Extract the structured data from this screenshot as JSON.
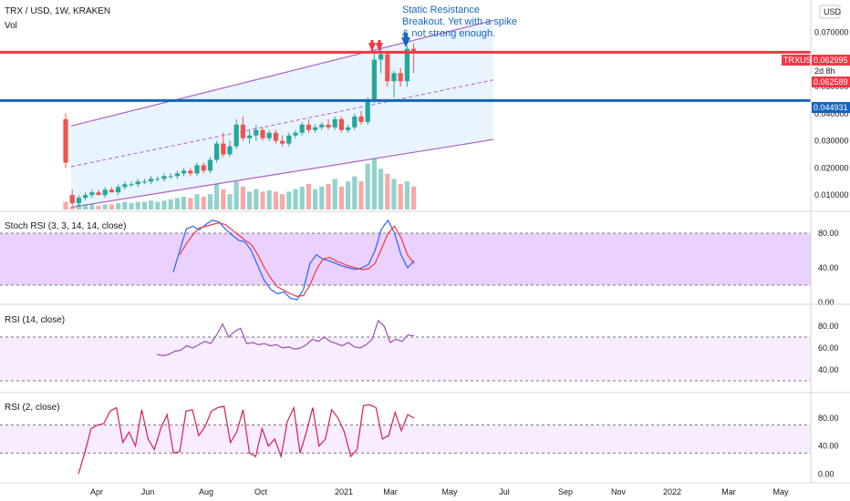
{
  "header": {
    "title": "TRX / USD, 1W, KRAKEN",
    "volume_label": "Vol",
    "currency": "USD"
  },
  "annotation": {
    "line1": "Static Resistance",
    "line2": "Breakout. Yet with a spike",
    "line3": "& not strong enough."
  },
  "price_tags": {
    "symbol": "TRXUSD",
    "last": "0.062995",
    "countdown": "2d 8h",
    "low": "0.062589",
    "support": "0.044931"
  },
  "colors": {
    "up": "#26a69a",
    "down": "#ef5350",
    "resistance": "#f23645",
    "support": "#1565c0",
    "channel": "#b05fc7",
    "stoch_k": "#2962ff",
    "stoch_d": "#f23645",
    "rsi": "#9c4fb0",
    "rsi2": "#d81b60"
  },
  "chart_data": [
    {
      "type": "candlestick",
      "ylim": [
        0.004,
        0.082
      ],
      "yticks": [
        "0.070000",
        "0.060000",
        "0.050000",
        "0.040000",
        "0.030000",
        "0.020000",
        "0.010000"
      ],
      "ytick_values": [
        0.07,
        0.06,
        0.05,
        0.04,
        0.03,
        0.02,
        0.01
      ],
      "xticks": [
        "Apr",
        "Jun",
        "Aug",
        "Oct",
        "2021",
        "Mar",
        "May",
        "Jul",
        "Sep",
        "Nov",
        "2022",
        "Mar",
        "May"
      ],
      "resistance": 0.0627,
      "support": 0.0449,
      "candles": [
        [
          0.038,
          0.04,
          0.02,
          0.022
        ],
        [
          0.01,
          0.012,
          0.006,
          0.007
        ],
        [
          0.007,
          0.01,
          0.006,
          0.009
        ],
        [
          0.009,
          0.011,
          0.008,
          0.01
        ],
        [
          0.01,
          0.012,
          0.009,
          0.011
        ],
        [
          0.011,
          0.012,
          0.01,
          0.01
        ],
        [
          0.01,
          0.013,
          0.009,
          0.012
        ],
        [
          0.012,
          0.013,
          0.011,
          0.011
        ],
        [
          0.011,
          0.014,
          0.01,
          0.013
        ],
        [
          0.013,
          0.015,
          0.012,
          0.014
        ],
        [
          0.014,
          0.015,
          0.013,
          0.014
        ],
        [
          0.014,
          0.016,
          0.013,
          0.015
        ],
        [
          0.015,
          0.016,
          0.014,
          0.015
        ],
        [
          0.015,
          0.017,
          0.014,
          0.016
        ],
        [
          0.016,
          0.017,
          0.015,
          0.016
        ],
        [
          0.016,
          0.018,
          0.015,
          0.017
        ],
        [
          0.017,
          0.018,
          0.016,
          0.017
        ],
        [
          0.017,
          0.019,
          0.016,
          0.018
        ],
        [
          0.018,
          0.02,
          0.017,
          0.019
        ],
        [
          0.019,
          0.02,
          0.017,
          0.018
        ],
        [
          0.018,
          0.022,
          0.017,
          0.021
        ],
        [
          0.021,
          0.022,
          0.018,
          0.019
        ],
        [
          0.019,
          0.024,
          0.018,
          0.023
        ],
        [
          0.023,
          0.03,
          0.022,
          0.029
        ],
        [
          0.029,
          0.033,
          0.024,
          0.025
        ],
        [
          0.025,
          0.03,
          0.024,
          0.028
        ],
        [
          0.028,
          0.038,
          0.027,
          0.036
        ],
        [
          0.036,
          0.039,
          0.03,
          0.031
        ],
        [
          0.031,
          0.034,
          0.029,
          0.032
        ],
        [
          0.032,
          0.036,
          0.03,
          0.034
        ],
        [
          0.034,
          0.035,
          0.03,
          0.031
        ],
        [
          0.031,
          0.034,
          0.03,
          0.033
        ],
        [
          0.033,
          0.034,
          0.029,
          0.03
        ],
        [
          0.03,
          0.032,
          0.028,
          0.029
        ],
        [
          0.029,
          0.033,
          0.028,
          0.032
        ],
        [
          0.032,
          0.034,
          0.031,
          0.033
        ],
        [
          0.033,
          0.037,
          0.032,
          0.036
        ],
        [
          0.036,
          0.038,
          0.033,
          0.034
        ],
        [
          0.034,
          0.036,
          0.033,
          0.035
        ],
        [
          0.035,
          0.037,
          0.034,
          0.036
        ],
        [
          0.036,
          0.038,
          0.034,
          0.035
        ],
        [
          0.035,
          0.039,
          0.034,
          0.038
        ],
        [
          0.038,
          0.039,
          0.033,
          0.034
        ],
        [
          0.034,
          0.036,
          0.033,
          0.035
        ],
        [
          0.035,
          0.04,
          0.034,
          0.039
        ],
        [
          0.039,
          0.041,
          0.036,
          0.037
        ],
        [
          0.037,
          0.046,
          0.036,
          0.045
        ],
        [
          0.045,
          0.063,
          0.044,
          0.06
        ],
        [
          0.06,
          0.066,
          0.055,
          0.062
        ],
        [
          0.062,
          0.063,
          0.05,
          0.052
        ],
        [
          0.052,
          0.056,
          0.046,
          0.055
        ],
        [
          0.055,
          0.057,
          0.05,
          0.052
        ],
        [
          0.052,
          0.065,
          0.05,
          0.064
        ],
        [
          0.064,
          0.066,
          0.055,
          0.063
        ]
      ],
      "volumes": [
        0.3,
        0.1,
        0.2,
        0.2,
        0.2,
        0.15,
        0.2,
        0.2,
        0.25,
        0.3,
        0.25,
        0.3,
        0.3,
        0.35,
        0.3,
        0.35,
        0.4,
        0.45,
        0.5,
        0.45,
        0.6,
        0.5,
        0.6,
        1.0,
        0.8,
        0.6,
        1.1,
        0.9,
        0.7,
        0.8,
        0.7,
        0.75,
        0.7,
        0.6,
        0.7,
        0.8,
        0.9,
        1.0,
        0.8,
        0.9,
        1.0,
        1.2,
        0.9,
        1.1,
        1.3,
        1.1,
        1.8,
        2.0,
        1.6,
        1.4,
        1.2,
        1.0,
        1.1,
        0.9
      ]
    },
    {
      "type": "line",
      "title": "Stoch RSI (3, 3, 14, 14, close)",
      "ylim": [
        0,
        100
      ],
      "yticks": [
        "80.00",
        "40.00",
        "0.00"
      ],
      "ytick_values": [
        80,
        40,
        0
      ],
      "bands": [
        80,
        20
      ],
      "series": [
        {
          "values": [
            35,
            60,
            85,
            88,
            84,
            90,
            95,
            93,
            85,
            78,
            72,
            70,
            60,
            42,
            25,
            15,
            10,
            12,
            5,
            3,
            15,
            45,
            55,
            50,
            48,
            45,
            42,
            40,
            38,
            40,
            44,
            60,
            85,
            95,
            80,
            55,
            40,
            48
          ]
        },
        {
          "values": [
            null,
            55,
            68,
            78,
            86,
            88,
            90,
            92,
            90,
            84,
            78,
            72,
            67,
            55,
            40,
            28,
            18,
            14,
            10,
            7,
            8,
            20,
            38,
            50,
            52,
            48,
            45,
            42,
            40,
            38,
            39,
            45,
            62,
            80,
            88,
            75,
            55,
            45
          ]
        }
      ]
    },
    {
      "type": "line",
      "title": "RSI (14, close)",
      "ylim": [
        20,
        95
      ],
      "yticks": [
        "80.00",
        "60.00",
        "40.00"
      ],
      "ytick_values": [
        80,
        60,
        40
      ],
      "bands": [
        70,
        30
      ],
      "series": [
        {
          "values": [
            54,
            53,
            54,
            57,
            58,
            62,
            60,
            63,
            66,
            64,
            72,
            82,
            70,
            75,
            78,
            64,
            65,
            63,
            64,
            62,
            63,
            60,
            61,
            59,
            60,
            63,
            68,
            66,
            70,
            66,
            64,
            62,
            65,
            61,
            60,
            63,
            68,
            85,
            80,
            65,
            68,
            66,
            72,
            71
          ]
        }
      ]
    },
    {
      "type": "line",
      "title": "RSI (2, close)",
      "ylim": [
        -10,
        110
      ],
      "yticks": [
        "80.00",
        "40.00",
        "0.00"
      ],
      "ytick_values": [
        80,
        40,
        0
      ],
      "bands": [
        70,
        30
      ],
      "series": [
        {
          "values": [
            0,
            30,
            65,
            70,
            72,
            90,
            95,
            45,
            60,
            40,
            92,
            50,
            35,
            65,
            85,
            30,
            32,
            90,
            92,
            55,
            68,
            90,
            95,
            97,
            45,
            60,
            92,
            30,
            25,
            65,
            40,
            50,
            25,
            75,
            95,
            30,
            60,
            95,
            40,
            50,
            92,
            80,
            60,
            25,
            35,
            98,
            99,
            95,
            50,
            55,
            88,
            62,
            85,
            80
          ]
        }
      ]
    }
  ]
}
